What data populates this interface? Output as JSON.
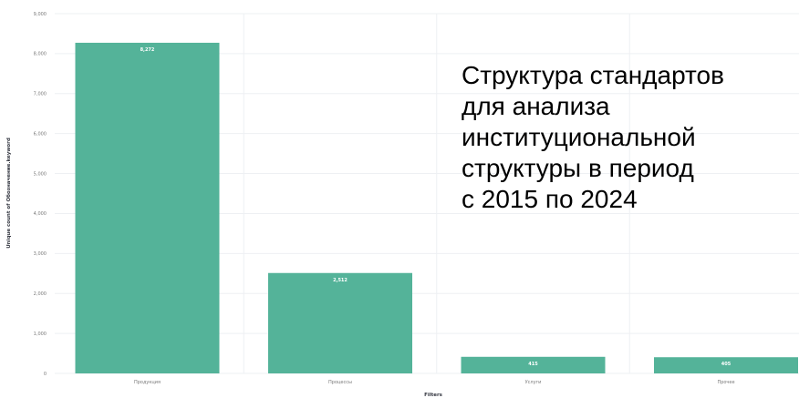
{
  "chart_data": {
    "type": "bar",
    "categories": [
      "Продукция",
      "Процессы",
      "Услуги",
      "Прочее"
    ],
    "values": [
      8272,
      2512,
      415,
      405
    ],
    "data_labels": [
      "8,272",
      "2,512",
      "415",
      "405"
    ],
    "xlabel": "Filters",
    "ylabel": "Unique count of Обозначение.keyword",
    "ylim": [
      0,
      9000
    ],
    "yticks": [
      0,
      1000,
      2000,
      3000,
      4000,
      5000,
      6000,
      7000,
      8000,
      9000
    ],
    "ytick_labels": [
      "0",
      "1,000",
      "2,000",
      "3,000",
      "4,000",
      "5,000",
      "6,000",
      "7,000",
      "8,000",
      "9,000"
    ],
    "grid": true,
    "legend": "none",
    "bar_color": "#54b399",
    "grid_color": "#eef0f3"
  },
  "overlay_text": {
    "lines": [
      "Структура стандартов",
      "для анализа",
      "институциональной",
      "структуры в период",
      "с 2015 по 2024"
    ]
  }
}
